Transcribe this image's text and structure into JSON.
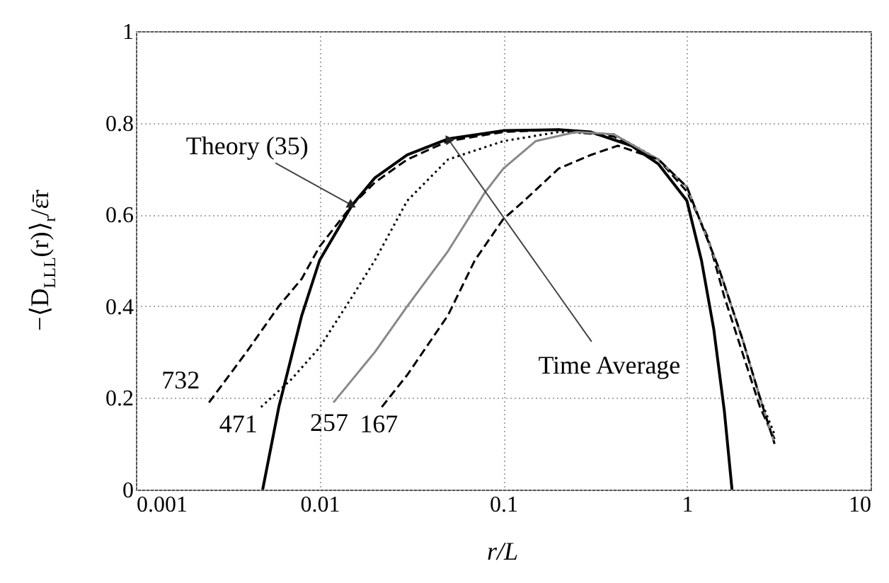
{
  "chart_data": {
    "type": "line",
    "xlabel": "r/L",
    "ylabel": "−⟨D$_{LLL}$(r)⟩$_{r}$/ε̄r",
    "log": "x",
    "grid": true,
    "marker": "none",
    "xlim": [
      0.001,
      10
    ],
    "xticks": [
      0.001,
      0.01,
      0.1,
      1,
      10
    ],
    "ylim": [
      0,
      1
    ],
    "yticks": [
      0,
      0.2,
      0.4,
      0.6,
      0.8,
      1
    ],
    "series": [
      {
        "color": "#000000",
        "line_style": "solid",
        "x": [
          0.0049,
          0.006,
          0.008,
          0.01,
          0.015,
          0.02,
          0.03,
          0.05,
          0.1,
          0.2,
          0.3,
          0.5,
          0.7,
          1,
          1.2,
          1.4,
          1.6,
          1.76
        ],
        "values": [
          0,
          0.18,
          0.38,
          0.5,
          0.62,
          0.68,
          0.73,
          0.765,
          0.783,
          0.785,
          0.78,
          0.75,
          0.71,
          0.63,
          0.5,
          0.35,
          0.17,
          0
        ]
      },
      {
        "color": "#000000",
        "line_style": "dashed",
        "x": [
          0.0025,
          0.004,
          0.006,
          0.008,
          0.01,
          0.015,
          0.02,
          0.03,
          0.05,
          0.1,
          0.2,
          0.4,
          0.7,
          1,
          1.3,
          1.6,
          2,
          2.5,
          3
        ],
        "values": [
          0.19,
          0.3,
          0.4,
          0.46,
          0.53,
          0.62,
          0.67,
          0.72,
          0.76,
          0.78,
          0.785,
          0.77,
          0.72,
          0.65,
          0.55,
          0.42,
          0.3,
          0.18,
          0.11
        ]
      },
      {
        "color": "#000000",
        "line_style": "dotted",
        "x": [
          0.0048,
          0.007,
          0.01,
          0.015,
          0.02,
          0.03,
          0.05,
          0.1,
          0.2,
          0.4,
          0.7,
          1,
          1.5,
          2,
          2.5,
          3
        ],
        "values": [
          0.18,
          0.24,
          0.31,
          0.42,
          0.5,
          0.63,
          0.72,
          0.76,
          0.78,
          0.775,
          0.72,
          0.66,
          0.48,
          0.33,
          0.2,
          0.12
        ]
      },
      {
        "color": "#888888",
        "line_style": "solid",
        "x": [
          0.0119,
          0.02,
          0.03,
          0.05,
          0.08,
          0.1,
          0.15,
          0.25,
          0.4,
          0.7,
          1,
          1.5,
          2,
          2.5,
          3
        ],
        "values": [
          0.19,
          0.3,
          0.4,
          0.52,
          0.65,
          0.7,
          0.76,
          0.78,
          0.775,
          0.72,
          0.66,
          0.48,
          0.33,
          0.2,
          0.1
        ]
      },
      {
        "color": "#000000",
        "line_style": "dashed",
        "x": [
          0.0218,
          0.03,
          0.05,
          0.07,
          0.1,
          0.13,
          0.2,
          0.3,
          0.42,
          0.7,
          1,
          1.5,
          2,
          2.5,
          3
        ],
        "values": [
          0.18,
          0.25,
          0.38,
          0.5,
          0.59,
          0.63,
          0.7,
          0.73,
          0.75,
          0.72,
          0.66,
          0.48,
          0.33,
          0.2,
          0.1
        ]
      }
    ],
    "annotations": [
      {
        "text": "Theory (35)",
        "x": 0.015,
        "y": 0.62
      },
      {
        "text": "Time Average",
        "x": 0.05,
        "y": 0.765
      },
      {
        "text": "732",
        "x": 0.0025,
        "y": 0.19
      },
      {
        "text": "471",
        "x": 0.0048,
        "y": 0.18
      },
      {
        "text": "257",
        "x": 0.0119,
        "y": 0.19
      },
      {
        "text": "167",
        "x": 0.0218,
        "y": 0.18
      }
    ]
  }
}
